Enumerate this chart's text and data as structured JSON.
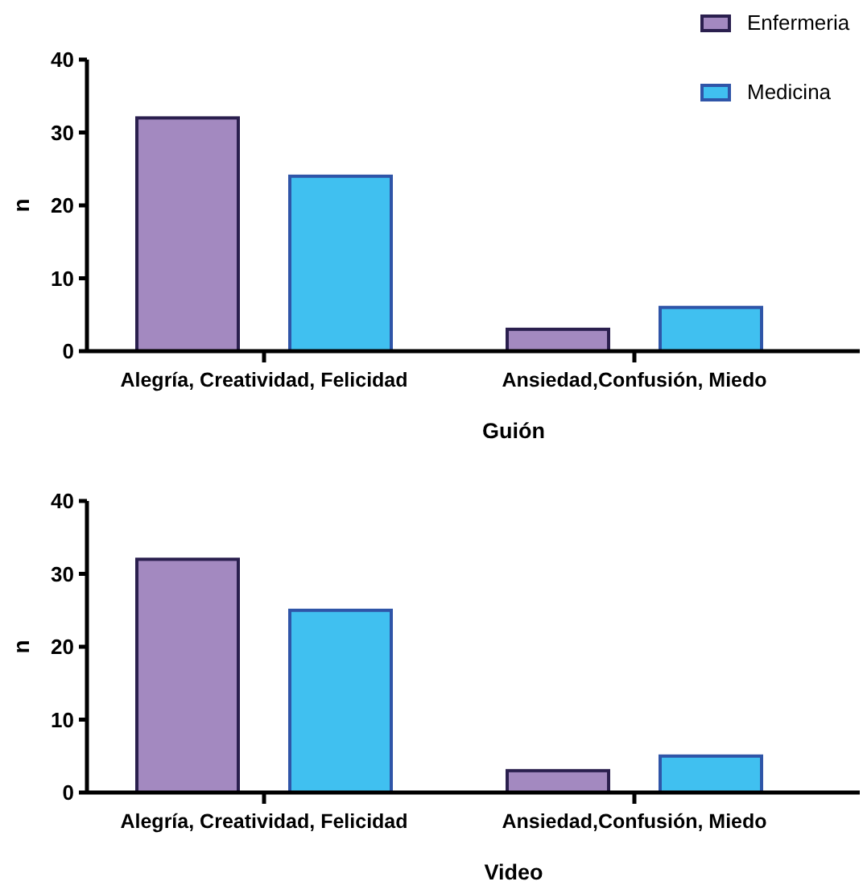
{
  "chart_data": [
    {
      "type": "bar",
      "xlabel": "Guión",
      "ylabel": "n",
      "categories": [
        "Alegría, Creatividad, Felicidad",
        "Ansiedad,Confusión, Miedo"
      ],
      "series": [
        {
          "name": "Enfermeria",
          "color": "#a389c0",
          "values": [
            32,
            3
          ]
        },
        {
          "name": "Medicina",
          "color": "#40c0f0",
          "values": [
            24,
            6
          ]
        }
      ],
      "ylim": [
        0,
        40
      ],
      "yticks": [
        0,
        10,
        20,
        30,
        40
      ],
      "grid": false,
      "legend": "top right"
    },
    {
      "type": "bar",
      "xlabel": "Video",
      "ylabel": "n",
      "categories": [
        "Alegría, Creatividad, Felicidad",
        "Ansiedad,Confusión, Miedo"
      ],
      "series": [
        {
          "color": "#a389c0",
          "values": [
            32,
            3
          ]
        },
        {
          "color": "#40c0f0",
          "values": [
            25,
            5
          ]
        }
      ],
      "ylim": [
        0,
        40
      ],
      "yticks": [
        0,
        10,
        20,
        30,
        40
      ],
      "grid": false,
      "legend": false
    }
  ]
}
